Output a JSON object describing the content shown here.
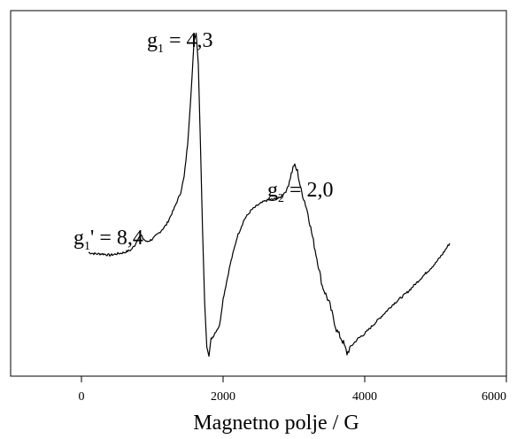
{
  "chart_data": {
    "type": "line",
    "title": "",
    "xlabel": "Magnetno polje / G",
    "ylabel": "",
    "xlim": [
      -1000,
      6000
    ],
    "ylim": [
      -1.2,
      1.55
    ],
    "x_ticks": [
      0,
      2000,
      4000,
      6000
    ],
    "x_tick_labels": [
      "0",
      "2000",
      "4000",
      "6000"
    ],
    "grid": false,
    "legend": "none",
    "line_color": "#000000",
    "series": [
      {
        "x": [
          100,
          200,
          300,
          400,
          500,
          600,
          700,
          760,
          800,
          840,
          880,
          920,
          1000,
          1100,
          1200,
          1300,
          1400,
          1450,
          1500,
          1550,
          1590,
          1620,
          1650,
          1680,
          1710,
          1740,
          1770,
          1800,
          1830,
          1860,
          1900,
          1950,
          2000,
          2100,
          2200,
          2300,
          2400,
          2500,
          2600,
          2700,
          2800,
          2900,
          2950,
          3000,
          3050,
          3100,
          3150,
          3200,
          3250,
          3300,
          3350,
          3400,
          3500,
          3600,
          3650,
          3700,
          3750,
          3800,
          3900,
          4000,
          4200,
          4400,
          4600,
          4800,
          5000,
          5100,
          5200
        ],
        "y": [
          -0.27,
          -0.28,
          -0.28,
          -0.29,
          -0.28,
          -0.27,
          -0.25,
          -0.21,
          -0.16,
          -0.14,
          -0.17,
          -0.19,
          -0.17,
          -0.12,
          -0.06,
          0.05,
          0.18,
          0.3,
          0.55,
          0.95,
          1.32,
          1.38,
          1.15,
          0.55,
          -0.1,
          -0.65,
          -0.98,
          -1.05,
          -0.92,
          -0.9,
          -0.86,
          -0.82,
          -0.62,
          -0.36,
          -0.15,
          -0.02,
          0.05,
          0.09,
          0.12,
          0.13,
          0.14,
          0.2,
          0.3,
          0.39,
          0.34,
          0.2,
          0.12,
          0.02,
          -0.12,
          -0.25,
          -0.38,
          -0.52,
          -0.65,
          -0.85,
          -0.9,
          -0.95,
          -1.03,
          -0.98,
          -0.92,
          -0.88,
          -0.77,
          -0.66,
          -0.57,
          -0.46,
          -0.35,
          -0.28,
          -0.2
        ]
      }
    ],
    "annotations": [
      {
        "main": "g",
        "sub": "1",
        "rest": " = 4,3"
      },
      {
        "main": "g",
        "sub": "2",
        "rest": " = 2,0"
      },
      {
        "main": "g",
        "sub": "1",
        "rest": "' = 8,4"
      }
    ]
  }
}
